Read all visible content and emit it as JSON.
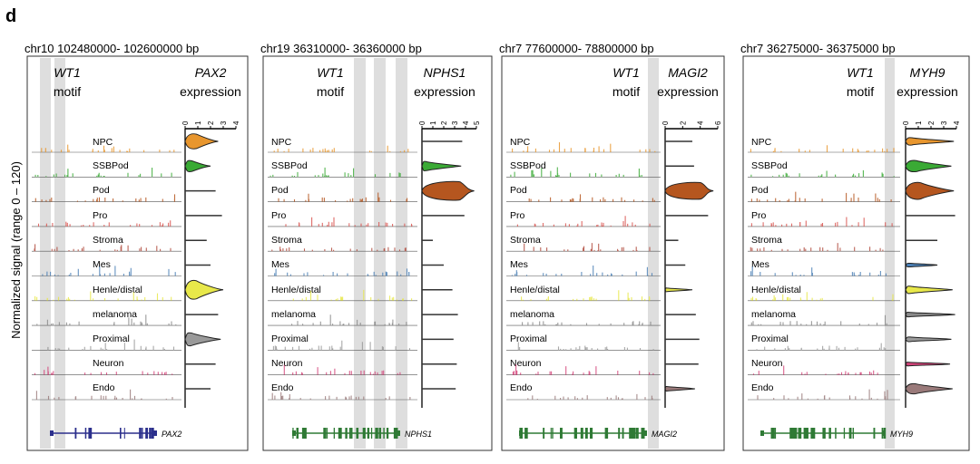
{
  "figure": {
    "panel_letter": "d",
    "ylabel": "Normalized signal (range 0 – 120)",
    "cell_types": [
      "NPC",
      "SSBPod",
      "Pod",
      "Pro",
      "Stroma",
      "Mes",
      "Henle/distal",
      "melanoma",
      "Proximal",
      "Neuron",
      "Endo"
    ],
    "motif_label_line1": "WT1",
    "motif_label_line2": "motif",
    "expression_word": "expression",
    "colors": {
      "NPC": "#e8962e",
      "SSBPod": "#3aaa35",
      "Pod": "#b5561f",
      "Pro": "#d9534f",
      "Stroma": "#b04a3c",
      "Mes": "#4a7fb5",
      "Henle/distal": "#e8e84a",
      "melanoma": "#8a8a8a",
      "Proximal": "#9a9a9a",
      "Neuron": "#d4447a",
      "Endo": "#9a7a7a",
      "highlight": "#dedede",
      "gene_blue": "#2b2f8c",
      "gene_green": "#2f7a35"
    },
    "panels": [
      {
        "region": "chr10 102480000- 102600000 bp",
        "gene": "PAX2",
        "gene_color": "gene_blue",
        "axis_ticks": [
          "0",
          "1",
          "2",
          "3",
          "4"
        ],
        "axis_max": 4,
        "violins": [
          {
            "name": "NPC",
            "max": 2.6,
            "peak": 0.9,
            "width": 0.8
          },
          {
            "name": "SSBPod",
            "max": 2.0,
            "peak": 0.5,
            "width": 0.6
          },
          {
            "name": "Pod",
            "max": 2.4,
            "peak": 0,
            "width": 0
          },
          {
            "name": "Pro",
            "max": 2.9,
            "peak": 0,
            "width": 0
          },
          {
            "name": "Stroma",
            "max": 1.7,
            "peak": 0,
            "width": 0
          },
          {
            "name": "Mes",
            "max": 2.0,
            "peak": 0,
            "width": 0
          },
          {
            "name": "Henle/distal",
            "max": 3.0,
            "peak": 0.9,
            "width": 1.0
          },
          {
            "name": "melanoma",
            "max": 2.6,
            "peak": 0,
            "width": 0
          },
          {
            "name": "Proximal",
            "max": 2.8,
            "peak": 0.5,
            "width": 0.7
          },
          {
            "name": "Neuron",
            "max": 2.4,
            "peak": 0,
            "width": 0
          },
          {
            "name": "Endo",
            "max": 2.0,
            "peak": 0,
            "width": 0
          }
        ]
      },
      {
        "region": "chr19 36310000- 36360000 bp",
        "gene": "NPHS1",
        "gene_color": "gene_green",
        "axis_ticks": [
          "0",
          "1",
          "2",
          "3",
          "4",
          "5"
        ],
        "axis_max": 5,
        "violins": [
          {
            "name": "NPC",
            "max": 3.7,
            "peak": 0,
            "width": 0
          },
          {
            "name": "SSBPod",
            "max": 3.6,
            "peak": 0.4,
            "width": 0.5
          },
          {
            "name": "Pod",
            "max": 4.8,
            "peak": 3.5,
            "width": 1.0
          },
          {
            "name": "Pro",
            "max": 3.9,
            "peak": 0,
            "width": 0
          },
          {
            "name": "Stroma",
            "max": 1.0,
            "peak": 0,
            "width": 0
          },
          {
            "name": "Mes",
            "max": 2.0,
            "peak": 0,
            "width": 0
          },
          {
            "name": "Henle/distal",
            "max": 2.8,
            "peak": 0,
            "width": 0
          },
          {
            "name": "melanoma",
            "max": 3.3,
            "peak": 0,
            "width": 0
          },
          {
            "name": "Proximal",
            "max": 2.9,
            "peak": 0,
            "width": 0
          },
          {
            "name": "Neuron",
            "max": 3.2,
            "peak": 0,
            "width": 0
          },
          {
            "name": "Endo",
            "max": 3.1,
            "peak": 0,
            "width": 0
          }
        ]
      },
      {
        "region": "chr7 77600000- 78800000 bp",
        "gene": "MAGI2",
        "gene_color": "gene_green",
        "axis_ticks": [
          "0",
          "2",
          "4",
          "6"
        ],
        "axis_max": 6,
        "violins": [
          {
            "name": "NPC",
            "max": 3.1,
            "peak": 0,
            "width": 0
          },
          {
            "name": "SSBPod",
            "max": 3.3,
            "peak": 0,
            "width": 0
          },
          {
            "name": "Pod",
            "max": 5.5,
            "peak": 4.1,
            "width": 0.9
          },
          {
            "name": "Pro",
            "max": 4.9,
            "peak": 0,
            "width": 0
          },
          {
            "name": "Stroma",
            "max": 1.5,
            "peak": 0,
            "width": 0
          },
          {
            "name": "Mes",
            "max": 2.3,
            "peak": 0,
            "width": 0
          },
          {
            "name": "Henle/distal",
            "max": 3.1,
            "peak": 0.2,
            "width": 0.2
          },
          {
            "name": "melanoma",
            "max": 3.5,
            "peak": 0,
            "width": 0
          },
          {
            "name": "Proximal",
            "max": 3.9,
            "peak": 0,
            "width": 0
          },
          {
            "name": "Neuron",
            "max": 3.8,
            "peak": 0,
            "width": 0
          },
          {
            "name": "Endo",
            "max": 3.4,
            "peak": 0.2,
            "width": 0.25
          }
        ]
      },
      {
        "region": "chr7 36275000- 36375000 bp",
        "gene": "MYH9",
        "gene_color": "gene_green",
        "axis_ticks": [
          "0",
          "1",
          "2",
          "3",
          "4"
        ],
        "axis_max": 4,
        "violins": [
          {
            "name": "NPC",
            "max": 3.8,
            "peak": 0.5,
            "width": 0.4
          },
          {
            "name": "SSBPod",
            "max": 3.6,
            "peak": 0.9,
            "width": 0.6
          },
          {
            "name": "Pod",
            "max": 3.8,
            "peak": 1.2,
            "width": 0.9
          },
          {
            "name": "Pro",
            "max": 3.9,
            "peak": 0,
            "width": 0
          },
          {
            "name": "Stroma",
            "max": 2.5,
            "peak": 0,
            "width": 0
          },
          {
            "name": "Mes",
            "max": 2.5,
            "peak": 0.4,
            "width": 0.2
          },
          {
            "name": "Henle/distal",
            "max": 3.7,
            "peak": 0.4,
            "width": 0.4
          },
          {
            "name": "melanoma",
            "max": 3.9,
            "peak": 0.3,
            "width": 0.25
          },
          {
            "name": "Proximal",
            "max": 3.6,
            "peak": 0.4,
            "width": 0.25
          },
          {
            "name": "Neuron",
            "max": 3.5,
            "peak": 0.3,
            "width": 0.2
          },
          {
            "name": "Endo",
            "max": 3.7,
            "peak": 0.8,
            "width": 0.55
          }
        ]
      }
    ]
  }
}
